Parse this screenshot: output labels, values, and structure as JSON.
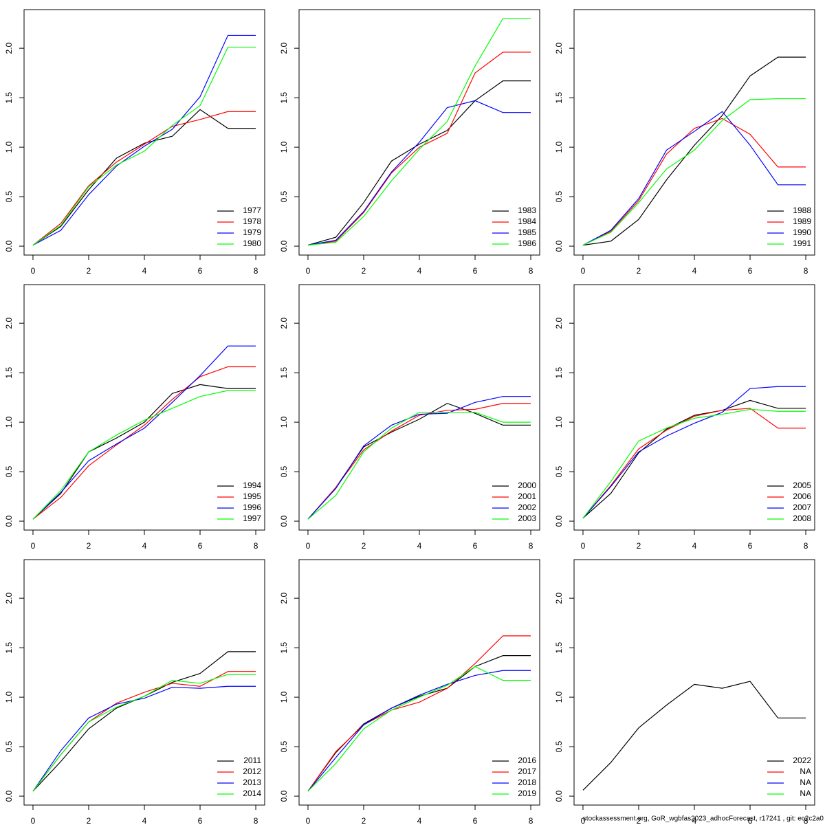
{
  "chart_data": [
    {
      "type": "line",
      "x": [
        0,
        1,
        2,
        3,
        4,
        5,
        6,
        7,
        8
      ],
      "xlim": [
        -0.32,
        8.32
      ],
      "xticks": [
        0,
        2,
        4,
        6,
        8
      ],
      "ylim": [
        -0.09,
        2.39
      ],
      "yticks": [
        {
          "value": 0,
          "label": "0.0"
        },
        0.5,
        {
          "value": 1,
          "label": "1.0"
        },
        1.5,
        {
          "value": 2,
          "label": "2.0"
        }
      ],
      "legend": "bottomright",
      "series": [
        {
          "name": "1977",
          "color": "#000000",
          "values": [
            0.01,
            0.2,
            0.57,
            0.89,
            1.04,
            1.11,
            1.38,
            1.19,
            1.19
          ]
        },
        {
          "name": "1978",
          "color": "#ff0000",
          "values": [
            0.01,
            0.23,
            0.61,
            0.85,
            1.03,
            1.21,
            1.28,
            1.36,
            1.36
          ]
        },
        {
          "name": "1979",
          "color": "#0000ff",
          "values": [
            0.01,
            0.16,
            0.52,
            0.81,
            1.01,
            1.18,
            1.51,
            2.13,
            2.13
          ]
        },
        {
          "name": "1980",
          "color": "#00ff00",
          "values": [
            0.01,
            0.21,
            0.6,
            0.82,
            0.96,
            1.22,
            1.42,
            2.01,
            2.01
          ]
        }
      ]
    },
    {
      "type": "line",
      "x": [
        0,
        1,
        2,
        3,
        4,
        5,
        6,
        7,
        8
      ],
      "xlim": [
        -0.32,
        8.32
      ],
      "xticks": [
        0,
        2,
        4,
        6,
        8
      ],
      "ylim": [
        -0.09,
        2.39
      ],
      "yticks": [
        {
          "value": 0,
          "label": "0.0"
        },
        0.5,
        {
          "value": 1,
          "label": "1.0"
        },
        1.5,
        {
          "value": 2,
          "label": "2.0"
        }
      ],
      "legend": "bottomright",
      "series": [
        {
          "name": "1983",
          "color": "#000000",
          "values": [
            0.01,
            0.09,
            0.44,
            0.86,
            1.03,
            1.17,
            1.47,
            1.67,
            1.67
          ]
        },
        {
          "name": "1984",
          "color": "#ff0000",
          "values": [
            0.01,
            0.05,
            0.34,
            0.74,
            1.0,
            1.14,
            1.75,
            1.96,
            1.96
          ]
        },
        {
          "name": "1985",
          "color": "#0000ff",
          "values": [
            0.01,
            0.06,
            0.35,
            0.75,
            1.05,
            1.4,
            1.47,
            1.35,
            1.35
          ]
        },
        {
          "name": "1986",
          "color": "#00ff00",
          "values": [
            0.01,
            0.04,
            0.3,
            0.66,
            0.98,
            1.26,
            1.82,
            2.3,
            2.3
          ]
        }
      ]
    },
    {
      "type": "line",
      "x": [
        0,
        1,
        2,
        3,
        4,
        5,
        6,
        7,
        8
      ],
      "xlim": [
        -0.32,
        8.32
      ],
      "xticks": [
        0,
        2,
        4,
        6,
        8
      ],
      "ylim": [
        -0.09,
        2.39
      ],
      "yticks": [
        {
          "value": 0,
          "label": "0.0"
        },
        0.5,
        {
          "value": 1,
          "label": "1.0"
        },
        1.5,
        {
          "value": 2,
          "label": "2.0"
        }
      ],
      "legend": "bottomright",
      "series": [
        {
          "name": "1988",
          "color": "#000000",
          "values": [
            0.01,
            0.05,
            0.27,
            0.67,
            1.02,
            1.32,
            1.72,
            1.91,
            1.91
          ]
        },
        {
          "name": "1989",
          "color": "#ff0000",
          "values": [
            0.01,
            0.15,
            0.46,
            0.93,
            1.19,
            1.29,
            1.13,
            0.8,
            0.8
          ]
        },
        {
          "name": "1990",
          "color": "#0000ff",
          "values": [
            0.01,
            0.16,
            0.48,
            0.97,
            1.16,
            1.36,
            1.02,
            0.62,
            0.62
          ]
        },
        {
          "name": "1991",
          "color": "#00ff00",
          "values": [
            0.01,
            0.14,
            0.44,
            0.78,
            0.97,
            1.27,
            1.48,
            1.49,
            1.49
          ]
        }
      ]
    },
    {
      "type": "line",
      "x": [
        0,
        1,
        2,
        3,
        4,
        5,
        6,
        7,
        8
      ],
      "xlim": [
        -0.32,
        8.32
      ],
      "xticks": [
        0,
        2,
        4,
        6,
        8
      ],
      "ylim": [
        -0.09,
        2.39
      ],
      "yticks": [
        {
          "value": 0,
          "label": "0.0"
        },
        0.5,
        {
          "value": 1,
          "label": "1.0"
        },
        1.5,
        {
          "value": 2,
          "label": "2.0"
        }
      ],
      "legend": "bottomright",
      "series": [
        {
          "name": "1994",
          "color": "#000000",
          "values": [
            0.02,
            0.28,
            0.7,
            0.84,
            1.0,
            1.29,
            1.38,
            1.34,
            1.34
          ]
        },
        {
          "name": "1995",
          "color": "#ff0000",
          "values": [
            0.02,
            0.24,
            0.56,
            0.77,
            0.97,
            1.23,
            1.46,
            1.56,
            1.56
          ]
        },
        {
          "name": "1996",
          "color": "#0000ff",
          "values": [
            0.02,
            0.29,
            0.61,
            0.78,
            0.94,
            1.2,
            1.47,
            1.77,
            1.77
          ]
        },
        {
          "name": "1997",
          "color": "#00ff00",
          "values": [
            0.02,
            0.31,
            0.7,
            0.87,
            1.02,
            1.14,
            1.26,
            1.32,
            1.32
          ]
        }
      ]
    },
    {
      "type": "line",
      "x": [
        0,
        1,
        2,
        3,
        4,
        5,
        6,
        7,
        8
      ],
      "xlim": [
        -0.32,
        8.32
      ],
      "xticks": [
        0,
        2,
        4,
        6,
        8
      ],
      "ylim": [
        -0.09,
        2.39
      ],
      "yticks": [
        {
          "value": 0,
          "label": "0.0"
        },
        0.5,
        {
          "value": 1,
          "label": "1.0"
        },
        1.5,
        {
          "value": 2,
          "label": "2.0"
        }
      ],
      "legend": "bottomright",
      "series": [
        {
          "name": "2000",
          "color": "#000000",
          "values": [
            0.02,
            0.34,
            0.75,
            0.9,
            1.03,
            1.19,
            1.09,
            0.97,
            0.97
          ]
        },
        {
          "name": "2001",
          "color": "#ff0000",
          "values": [
            0.02,
            0.34,
            0.72,
            0.91,
            1.07,
            1.12,
            1.13,
            1.19,
            1.19
          ]
        },
        {
          "name": "2002",
          "color": "#0000ff",
          "values": [
            0.02,
            0.33,
            0.76,
            0.97,
            1.08,
            1.09,
            1.2,
            1.26,
            1.26
          ]
        },
        {
          "name": "2003",
          "color": "#00ff00",
          "values": [
            0.02,
            0.26,
            0.7,
            0.94,
            1.1,
            1.1,
            1.1,
            1.0,
            1.0
          ]
        }
      ]
    },
    {
      "type": "line",
      "x": [
        0,
        1,
        2,
        3,
        4,
        5,
        6,
        7,
        8
      ],
      "xlim": [
        -0.32,
        8.32
      ],
      "xticks": [
        0,
        2,
        4,
        6,
        8
      ],
      "ylim": [
        -0.09,
        2.39
      ],
      "yticks": [
        {
          "value": 0,
          "label": "0.0"
        },
        0.5,
        {
          "value": 1,
          "label": "1.0"
        },
        1.5,
        {
          "value": 2,
          "label": "2.0"
        }
      ],
      "legend": "bottomright",
      "series": [
        {
          "name": "2005",
          "color": "#000000",
          "values": [
            0.03,
            0.28,
            0.69,
            0.93,
            1.07,
            1.12,
            1.22,
            1.14,
            1.14
          ]
        },
        {
          "name": "2006",
          "color": "#ff0000",
          "values": [
            0.03,
            0.36,
            0.73,
            0.92,
            1.06,
            1.12,
            1.14,
            0.94,
            0.94
          ]
        },
        {
          "name": "2007",
          "color": "#0000ff",
          "values": [
            0.03,
            0.35,
            0.7,
            0.86,
            0.99,
            1.1,
            1.34,
            1.36,
            1.36
          ]
        },
        {
          "name": "2008",
          "color": "#00ff00",
          "values": [
            0.03,
            0.4,
            0.81,
            0.94,
            1.04,
            1.08,
            1.13,
            1.11,
            1.11
          ]
        }
      ]
    },
    {
      "type": "line",
      "x": [
        0,
        1,
        2,
        3,
        4,
        5,
        6,
        7,
        8
      ],
      "xlim": [
        -0.32,
        8.32
      ],
      "xticks": [
        0,
        2,
        4,
        6,
        8
      ],
      "ylim": [
        -0.09,
        2.39
      ],
      "yticks": [
        {
          "value": 0,
          "label": "0.0"
        },
        0.5,
        {
          "value": 1,
          "label": "1.0"
        },
        1.5,
        {
          "value": 2,
          "label": "2.0"
        }
      ],
      "legend": "bottomright",
      "series": [
        {
          "name": "2011",
          "color": "#000000",
          "values": [
            0.05,
            0.35,
            0.68,
            0.89,
            1.01,
            1.15,
            1.24,
            1.46,
            1.46
          ]
        },
        {
          "name": "2012",
          "color": "#ff0000",
          "values": [
            0.05,
            0.42,
            0.75,
            0.94,
            1.05,
            1.14,
            1.11,
            1.26,
            1.26
          ]
        },
        {
          "name": "2013",
          "color": "#0000ff",
          "values": [
            0.05,
            0.46,
            0.79,
            0.93,
            0.99,
            1.1,
            1.09,
            1.11,
            1.11
          ]
        },
        {
          "name": "2014",
          "color": "#00ff00",
          "values": [
            0.05,
            0.42,
            0.75,
            0.9,
            1.01,
            1.17,
            1.14,
            1.23,
            1.23
          ]
        }
      ]
    },
    {
      "type": "line",
      "x": [
        0,
        1,
        2,
        3,
        4,
        5,
        6,
        7,
        8
      ],
      "xlim": [
        -0.32,
        8.32
      ],
      "xticks": [
        0,
        2,
        4,
        6,
        8
      ],
      "ylim": [
        -0.09,
        2.39
      ],
      "yticks": [
        {
          "value": 0,
          "label": "0.0"
        },
        0.5,
        {
          "value": 1,
          "label": "1.0"
        },
        1.5,
        {
          "value": 2,
          "label": "2.0"
        }
      ],
      "legend": "bottomright",
      "series": [
        {
          "name": "2016",
          "color": "#000000",
          "values": [
            0.05,
            0.44,
            0.73,
            0.89,
            1.01,
            1.09,
            1.31,
            1.42,
            1.42
          ]
        },
        {
          "name": "2017",
          "color": "#ff0000",
          "values": [
            0.05,
            0.45,
            0.72,
            0.87,
            0.95,
            1.09,
            1.34,
            1.62,
            1.62
          ]
        },
        {
          "name": "2018",
          "color": "#0000ff",
          "values": [
            0.05,
            0.39,
            0.72,
            0.89,
            1.02,
            1.13,
            1.22,
            1.27,
            1.27
          ]
        },
        {
          "name": "2019",
          "color": "#00ff00",
          "values": [
            0.05,
            0.33,
            0.68,
            0.87,
            1.0,
            1.12,
            1.31,
            1.17,
            1.17
          ]
        }
      ]
    },
    {
      "type": "line",
      "x": [
        0,
        1,
        2,
        3,
        4,
        5,
        6,
        7,
        8
      ],
      "xlim": [
        -0.32,
        8.32
      ],
      "xticks": [
        0,
        2,
        4,
        6,
        8
      ],
      "ylim": [
        -0.09,
        2.39
      ],
      "yticks": [
        {
          "value": 0,
          "label": "0.0"
        },
        0.5,
        {
          "value": 1,
          "label": "1.0"
        },
        1.5,
        {
          "value": 2,
          "label": "2.0"
        }
      ],
      "legend": "bottomright",
      "series": [
        {
          "name": "2022",
          "color": "#000000",
          "values": [
            0.06,
            0.34,
            0.69,
            0.92,
            1.13,
            1.09,
            1.16,
            0.79,
            0.79
          ]
        },
        {
          "name": "NA",
          "color": "#ff0000",
          "values": [
            null,
            null,
            null,
            null,
            null,
            null,
            null,
            null,
            null
          ]
        },
        {
          "name": "NA",
          "color": "#0000ff",
          "values": [
            null,
            null,
            null,
            null,
            null,
            null,
            null,
            null,
            null
          ]
        },
        {
          "name": "NA",
          "color": "#00ff00",
          "values": [
            null,
            null,
            null,
            null,
            null,
            null,
            null,
            null,
            null
          ]
        }
      ]
    }
  ],
  "footer": "stockassessment.org, GoR_wgbfas2023_adhocForecast, r17241 , git: ec2c2a0"
}
